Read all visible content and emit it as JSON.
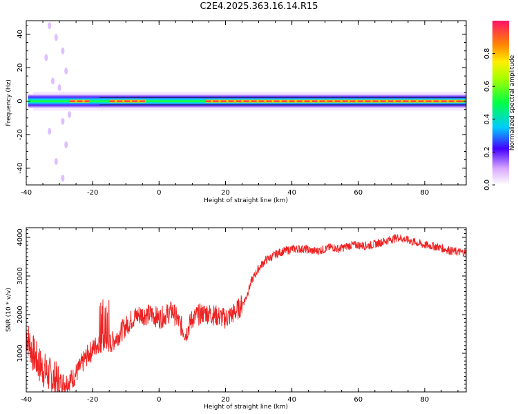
{
  "title": "C2E4.2025.363.16.14.R15",
  "colors": {
    "snr_line": "#ee2222",
    "axis": "#000000"
  },
  "chart_data": [
    {
      "type": "heatmap",
      "title": "C2E4.2025.363.16.14.R15",
      "xlabel": "Height of straight line (km)",
      "ylabel": "Frequency (Hz)",
      "xlim": [
        -40,
        92.5
      ],
      "ylim": [
        -50,
        48
      ],
      "xticks": [
        "-40",
        "-20",
        "0",
        "20",
        "40",
        "60",
        "80"
      ],
      "yticks": [
        "40",
        "20",
        "0",
        "-20",
        "-40"
      ],
      "colorbar": {
        "label": "Normalized spectral amplitude",
        "range": [
          0,
          1
        ],
        "ticks": [
          "0.0",
          "0.2",
          "0.4",
          "0.6",
          "0.8"
        ]
      },
      "band_center_hz": 0,
      "band_halfwidth_hz": 4,
      "peak_amplitude_segments": [
        {
          "x_start": -27,
          "x_end": -21,
          "amplitude": 0.9
        },
        {
          "x_start": -15,
          "x_end": -4,
          "amplitude": 0.95
        },
        {
          "x_start": 14,
          "x_end": 92,
          "amplitude": 0.95
        }
      ]
    },
    {
      "type": "line",
      "xlabel": "Height of straight line (km)",
      "ylabel": "SNR (10 * v/v)",
      "xlim": [
        -40,
        92.5
      ],
      "ylim": [
        0,
        4250
      ],
      "xticks": [
        "-40",
        "-20",
        "0",
        "20",
        "40",
        "60",
        "80"
      ],
      "yticks": [
        "1000",
        "2000",
        "3000",
        "4000"
      ],
      "series": [
        {
          "name": "SNR",
          "x": [
            -40,
            -38,
            -36,
            -34,
            -32,
            -30,
            -28,
            -26,
            -24,
            -22,
            -20,
            -18,
            -16,
            -14,
            -12,
            -10,
            -8,
            -6,
            -4,
            -2,
            0,
            2,
            4,
            6,
            8,
            10,
            12,
            14,
            16,
            18,
            20,
            22,
            24,
            26,
            28,
            30,
            32,
            34,
            36,
            38,
            40,
            42,
            44,
            46,
            48,
            50,
            52,
            54,
            56,
            58,
            60,
            62,
            64,
            66,
            68,
            70,
            72,
            74,
            76,
            78,
            80,
            82,
            84,
            86,
            88,
            90,
            92.5
          ],
          "values": [
            1500,
            1000,
            700,
            500,
            350,
            250,
            250,
            350,
            600,
            900,
            1100,
            1300,
            1200,
            1300,
            1500,
            1700,
            1900,
            2000,
            2000,
            2000,
            1900,
            2000,
            2100,
            1800,
            1500,
            1900,
            2000,
            2050,
            2000,
            1950,
            1900,
            2000,
            2150,
            2400,
            2900,
            3200,
            3400,
            3500,
            3600,
            3650,
            3700,
            3700,
            3700,
            3650,
            3650,
            3700,
            3750,
            3700,
            3750,
            3800,
            3800,
            3780,
            3800,
            3850,
            3900,
            3950,
            4000,
            3950,
            3900,
            3850,
            3800,
            3780,
            3750,
            3700,
            3650,
            3620,
            3600
          ]
        }
      ]
    }
  ]
}
